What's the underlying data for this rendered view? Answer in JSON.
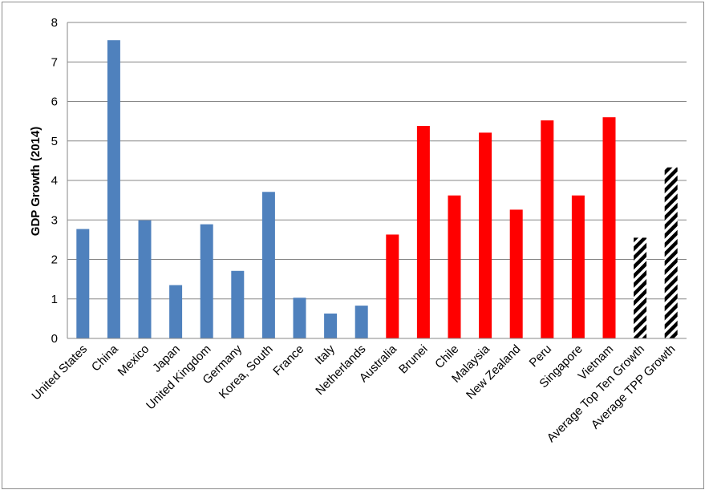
{
  "chart_data": {
    "type": "bar",
    "title": "",
    "xlabel": "",
    "ylabel": "GDP Growth (2014)",
    "ylim": [
      0,
      8
    ],
    "yticks": [
      "0",
      "1",
      "2",
      "3",
      "4",
      "5",
      "6",
      "7",
      "8"
    ],
    "grid": true,
    "legend": "none",
    "categories": [
      "United States",
      "China",
      "Mexico",
      "Japan",
      "United Kingdom",
      "Germany",
      "Korea, South",
      "France",
      "Italy",
      "Netherlands",
      "Australia",
      "Brunei",
      "Chile",
      "Malaysia",
      "New Zealand",
      "Peru",
      "Singapore",
      "Vietnam",
      "Average Top Ten Growth",
      "Average TPP Growth"
    ],
    "values": [
      2.77,
      7.55,
      2.99,
      1.35,
      2.89,
      1.71,
      3.71,
      1.03,
      0.63,
      0.83,
      2.63,
      5.38,
      3.62,
      5.21,
      3.26,
      5.52,
      3.62,
      5.6,
      2.55,
      4.33
    ],
    "bar_styles": [
      "blue",
      "blue",
      "blue",
      "blue",
      "blue",
      "blue",
      "blue",
      "blue",
      "blue",
      "blue",
      "red",
      "red",
      "red",
      "red",
      "red",
      "red",
      "red",
      "red",
      "hatched",
      "hatched"
    ],
    "colors": {
      "blue": "#4f81bd",
      "red": "#ff0000",
      "hatched_dark": "#000000",
      "hatched_light": "#ffffff",
      "grid": "#878787"
    }
  }
}
